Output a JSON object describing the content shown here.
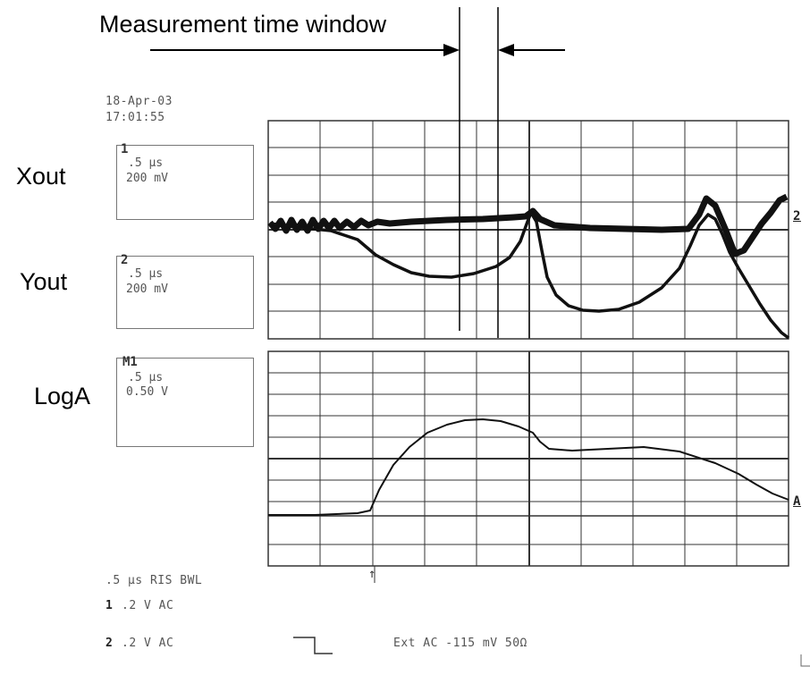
{
  "annotation": {
    "window_label": "Measurement time window"
  },
  "header": {
    "date": "18-Apr-03",
    "time": "17:01:55"
  },
  "channels": [
    {
      "name": "Xout",
      "num": "1",
      "timebase": ".5 µs",
      "scale": "200 mV"
    },
    {
      "name": "Yout",
      "num": "2",
      "timebase": ".5 µs",
      "scale": "200 mV"
    },
    {
      "name": "LogA",
      "num": "M1",
      "timebase": ".5 µs",
      "scale": "0.50 V"
    }
  ],
  "markers": {
    "top_ref": "2",
    "bottom_ref": "A",
    "trigger": "↑"
  },
  "footer": {
    "line1": ".5 µs RIS BWL",
    "ch1_num": "1",
    "ch1_settings": ".2  V  AC",
    "ch2_num": "2",
    "ch2_settings": ".2  V  AC",
    "trigger": "Ext  AC -115 mV 50Ω"
  },
  "colors": {
    "trace": "#111111",
    "grid": "#333333"
  }
}
